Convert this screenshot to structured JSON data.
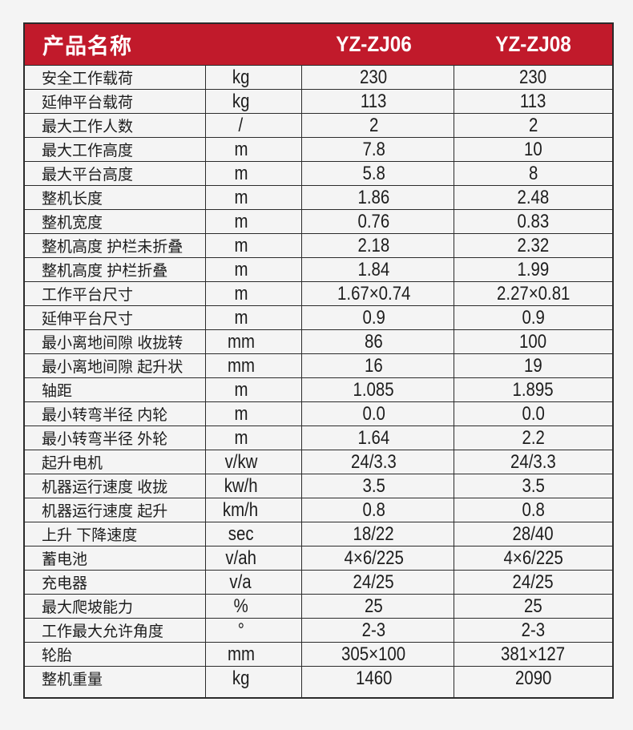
{
  "colors": {
    "header_bg": "#c11a2b",
    "header_text": "#ffffff",
    "border": "#2b2b2b",
    "page_bg": "#f4f4f4",
    "text": "#1d1d1d"
  },
  "table": {
    "title": "产品名称",
    "models": [
      "YZ-ZJ06",
      "YZ-ZJ08"
    ]
  },
  "rows": [
    {
      "label": "安全工作载荷",
      "unit": "kg",
      "v1": "230",
      "v2": "230"
    },
    {
      "label": "延伸平台载荷",
      "unit": "kg",
      "v1": "113",
      "v2": "113"
    },
    {
      "label": "最大工作人数",
      "unit": "/",
      "v1": "2",
      "v2": "2"
    },
    {
      "label": "最大工作高度",
      "unit": "m",
      "v1": "7.8",
      "v2": "10"
    },
    {
      "label": "最大平台高度",
      "unit": "m",
      "v1": "5.8",
      "v2": "8"
    },
    {
      "label": "整机长度",
      "unit": "m",
      "v1": "1.86",
      "v2": "2.48"
    },
    {
      "label": "整机宽度",
      "unit": "m",
      "v1": "0.76",
      "v2": "0.83"
    },
    {
      "label": "整机高度 护栏未折叠",
      "unit": "m",
      "v1": "2.18",
      "v2": "2.32"
    },
    {
      "label": "整机高度 护栏折叠",
      "unit": "m",
      "v1": "1.84",
      "v2": "1.99"
    },
    {
      "label": "工作平台尺寸",
      "unit": "m",
      "v1": "1.67×0.74",
      "v2": "2.27×0.81"
    },
    {
      "label": "延伸平台尺寸",
      "unit": "m",
      "v1": "0.9",
      "v2": "0.9"
    },
    {
      "label": "最小离地间隙 收拢转",
      "unit": "mm",
      "v1": "86",
      "v2": "100"
    },
    {
      "label": "最小离地间隙 起升状",
      "unit": "mm",
      "v1": "16",
      "v2": "19"
    },
    {
      "label": "轴距",
      "unit": "m",
      "v1": "1.085",
      "v2": "1.895"
    },
    {
      "label": "最小转弯半径 内轮",
      "unit": "m",
      "v1": "0.0",
      "v2": "0.0"
    },
    {
      "label": "最小转弯半径 外轮",
      "unit": "m",
      "v1": "1.64",
      "v2": "2.2"
    },
    {
      "label": "起升电机",
      "unit": "v/kw",
      "v1": "24/3.3",
      "v2": "24/3.3"
    },
    {
      "label": "机器运行速度 收拢",
      "unit": "kw/h",
      "v1": "3.5",
      "v2": "3.5"
    },
    {
      "label": "机器运行速度 起升",
      "unit": "km/h",
      "v1": "0.8",
      "v2": "0.8"
    },
    {
      "label": "上升 下降速度",
      "unit": "sec",
      "v1": "18/22",
      "v2": "28/40"
    },
    {
      "label": "蓄电池",
      "unit": "v/ah",
      "v1": "4×6/225",
      "v2": "4×6/225"
    },
    {
      "label": "充电器",
      "unit": "v/a",
      "v1": "24/25",
      "v2": "24/25"
    },
    {
      "label": "最大爬坡能力",
      "unit": "%",
      "v1": "25",
      "v2": "25"
    },
    {
      "label": "工作最大允许角度",
      "unit": "°",
      "v1": "2-3",
      "v2": "2-3"
    },
    {
      "label": "轮胎",
      "unit": "mm",
      "v1": "305×100",
      "v2": "381×127"
    },
    {
      "label": "整机重量",
      "unit": "kg",
      "v1": "1460",
      "v2": "2090"
    }
  ]
}
